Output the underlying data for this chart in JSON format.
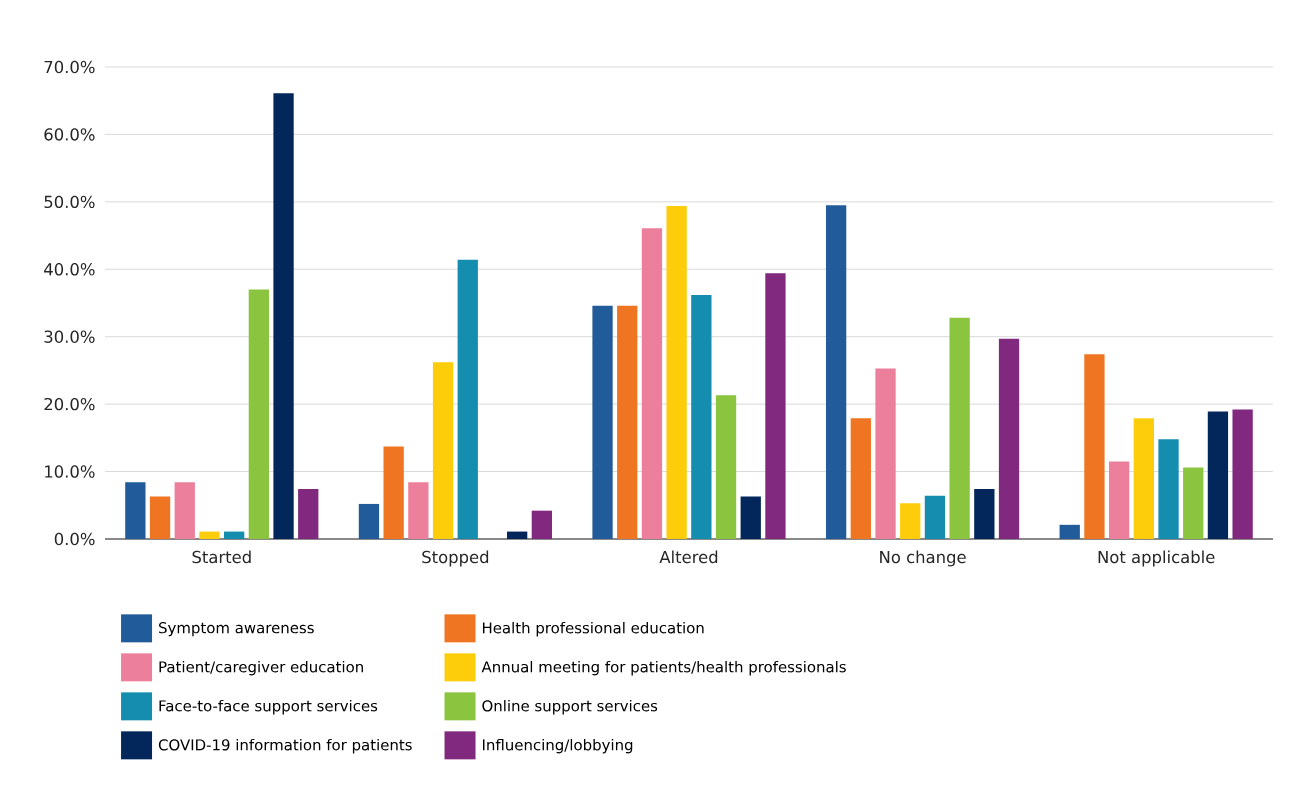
{
  "chart_data": {
    "type": "bar",
    "categories": [
      "Started",
      "Stopped",
      "Altered",
      "No change",
      "Not applicable"
    ],
    "series": [
      {
        "name": "Symptom awareness",
        "color": "#225b99",
        "values": [
          8.4,
          5.2,
          34.6,
          49.5,
          2.1
        ]
      },
      {
        "name": "Health professional education",
        "color": "#ef7522",
        "values": [
          6.3,
          13.7,
          34.6,
          17.9,
          27.4
        ]
      },
      {
        "name": "Patient/caregiver education",
        "color": "#ec7f9b",
        "values": [
          8.4,
          8.4,
          46.1,
          25.3,
          11.5
        ]
      },
      {
        "name": "Annual meeting for patients/health professionals",
        "color": "#fdcc0b",
        "values": [
          1.1,
          26.2,
          49.4,
          5.3,
          17.9
        ]
      },
      {
        "name": "Face-to-face support services",
        "color": "#158daf",
        "values": [
          1.1,
          41.4,
          36.2,
          6.4,
          14.8
        ]
      },
      {
        "name": "Online support services",
        "color": "#8bc43f",
        "values": [
          37.0,
          0,
          21.3,
          32.8,
          10.6
        ]
      },
      {
        "name": "COVID-19 information for patients",
        "color": "#03275a",
        "values": [
          66.1,
          1.1,
          6.3,
          7.4,
          18.9
        ]
      },
      {
        "name": "Influencing/lobbying",
        "color": "#80297e",
        "values": [
          7.4,
          4.2,
          39.4,
          29.7,
          19.2
        ]
      }
    ],
    "ylim": [
      0,
      70
    ],
    "yticks": [
      {
        "value": 0,
        "label": "0.0%"
      },
      {
        "value": 10,
        "label": "10.0%"
      },
      {
        "value": 20,
        "label": "20.0%"
      },
      {
        "value": 30,
        "label": "30.0%"
      },
      {
        "value": 40,
        "label": "40.0%"
      },
      {
        "value": 50,
        "label": "50.0%"
      },
      {
        "value": 60,
        "label": "60.0%"
      },
      {
        "value": 70,
        "label": "70.0%"
      }
    ],
    "grid": "y",
    "legend": "bottom"
  }
}
